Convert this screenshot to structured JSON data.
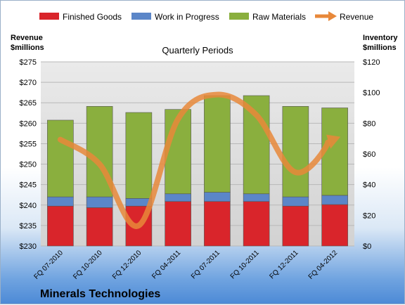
{
  "chart_data": {
    "type": "bar",
    "subtype": "stacked bar with line overlay",
    "company": "Minerals Technologies",
    "plot_title": "Quarterly Periods",
    "left_axis_title": [
      "Revenue",
      "$millions"
    ],
    "right_axis_title": [
      "Inventory",
      "$millions"
    ],
    "categories": [
      "FQ 07-2010",
      "FQ 10-2010",
      "FQ 12-2010",
      "FQ 04-2011",
      "FQ 07-2011",
      "FQ 10-2011",
      "FQ 12-2011",
      "FQ 04-2012"
    ],
    "series": [
      {
        "name": "Finished Goods",
        "axis": "right",
        "color": "#d9252b",
        "values": [
          26,
          25,
          26,
          29,
          29,
          29,
          26,
          27
        ]
      },
      {
        "name": "Work in Progress",
        "axis": "right",
        "color": "#5b86c8",
        "values": [
          6,
          7,
          5,
          5,
          6,
          5,
          6,
          6
        ]
      },
      {
        "name": "Raw Materials",
        "axis": "right",
        "color": "#8aaf3e",
        "values": [
          50,
          59,
          56,
          55,
          63,
          64,
          59,
          57
        ]
      },
      {
        "name": "Revenue",
        "axis": "left",
        "type": "line",
        "color": "#e8883a",
        "values": [
          256,
          250,
          235,
          261,
          267,
          262,
          248,
          256
        ]
      }
    ],
    "left_axis": {
      "min": 230,
      "max": 275,
      "step": 5,
      "prefix": "$"
    },
    "right_axis": {
      "min": 0,
      "max": 120,
      "step": 20,
      "prefix": "$"
    },
    "grid": true,
    "legend_position": "top"
  }
}
